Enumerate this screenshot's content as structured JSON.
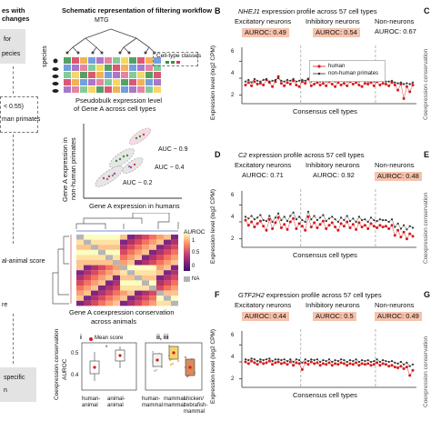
{
  "left_column": {
    "heading_line1": "es with",
    "heading_line2": "changes",
    "box1_line1": "for",
    "box1_line2": "pecies",
    "box2_line1": "< 0.55)",
    "box2_line2": "man primates",
    "box3_line1": "al-animal score",
    "box3_line2": "re",
    "box4_line1": "specific",
    "box4_line2": "n"
  },
  "schematic": {
    "title": "Schematic representation of filtering workflow",
    "mtg_label": "MTG",
    "species_label": "species",
    "legend_label": "Cell-type classes",
    "pseudobulk_line1": "Pseudobulk expression level",
    "pseudobulk_line2": "of Gene A across cell types",
    "ylabel_line1": "Gene A expression in",
    "ylabel_line2": "non-human primates",
    "xlabel": "Gene A expression in humans",
    "auc_labels": [
      "AUC ~ 0.9",
      "AUC ~ 0.4",
      "AUC ~ 0.2"
    ],
    "heatmap_legend_title": "AUROC",
    "heatmap_legend_ticks": [
      "1",
      "0.5",
      "0"
    ],
    "heatmap_na": "NA",
    "heatmap_caption_line1": "Gene A coexpression conservation",
    "heatmap_caption_line2": "across animals",
    "sub_i": "i",
    "sub_ii": "ii, iii",
    "mean_score_label": "Mean score",
    "box_ylabel_line1": "Coexpression conservation",
    "box_ylabel_line2": "AUROC",
    "box_yticks": [
      "0.5",
      "0.4"
    ],
    "box_xlabels_i": [
      "human-\nanimal",
      "animal-\nanimal"
    ],
    "box_xlabels_ii": [
      "human-\nmammal",
      "mammal-\nmammal",
      "chicken/\nzebrafish-\nmammal"
    ]
  },
  "panels": [
    {
      "letter": "B",
      "gene": "NHEJ1",
      "title_rest": " expression profile across 57 cell types",
      "groups": [
        {
          "name": "Excitatory neurons",
          "auroc": "AUROC: 0.49",
          "highlight": true
        },
        {
          "name": "Inhibitory neurons",
          "auroc": "AUROC: 0.54",
          "highlight": true
        },
        {
          "name": "Non-neurons",
          "auroc": "AUROC: 0.67",
          "highlight": false
        }
      ],
      "ylabel": "Expression level (log2 CPM)",
      "xlabel": "Consensus cell types",
      "yticks": [
        "6",
        "4",
        "2"
      ],
      "legend": [
        "human",
        "non-human primates"
      ]
    },
    {
      "letter": "D",
      "gene": "C2",
      "title_rest": " expression profile across 57 cell types",
      "groups": [
        {
          "name": "Excitatory neurons",
          "auroc": "AUROC: 0.71",
          "highlight": false
        },
        {
          "name": "Inhibitory neurons",
          "auroc": "AUROC: 0.92",
          "highlight": false
        },
        {
          "name": "Non-neurons",
          "auroc": "AUROC: 0.48",
          "highlight": true
        }
      ],
      "ylabel": "Expression level (log2 CPM)",
      "xlabel": "Consensus cell types",
      "yticks": [
        "6",
        "4",
        "2"
      ]
    },
    {
      "letter": "F",
      "gene": "GTF2H2",
      "title_rest": " expression profile across 57 cell types",
      "groups": [
        {
          "name": "Excitatory neurons",
          "auroc": "AUROC: 0.44",
          "highlight": true
        },
        {
          "name": "Inhibitory neurons",
          "auroc": "AUROC: 0.5",
          "highlight": true
        },
        {
          "name": "Non-neurons",
          "auroc": "AUROC: 0.49",
          "highlight": true
        }
      ],
      "ylabel": "Expression level (log2 CPM)",
      "xlabel": "Consensus cell types",
      "yticks": [
        "6",
        "4",
        "2"
      ]
    }
  ],
  "right_edge": {
    "letters": [
      "C",
      "E",
      "G"
    ],
    "partial_label": "Coexpression conservation"
  },
  "colors": {
    "human": "#d7191c",
    "nonhuman": "#333333",
    "highlight": "#f7c2ac",
    "divider": "#999999"
  },
  "chart_data": [
    {
      "type": "line",
      "title": "NHEJ1 expression profile across 57 cell types",
      "xlabel": "Consensus cell types",
      "ylabel": "Expression level (log2 CPM)",
      "ylim": [
        1,
        7
      ],
      "series": [
        {
          "name": "human",
          "values": [
            3.2,
            3.5,
            3.1,
            3.6,
            3.3,
            3.4,
            3.2,
            3.8,
            3.5,
            3.0,
            3.6,
            4.2,
            3.4,
            3.1,
            3.5,
            3.3,
            3.7,
            3.2,
            3.0,
            3.6,
            3.4,
            3.9,
            3.1,
            3.3,
            3.5,
            3.2,
            3.4,
            3.1,
            3.6,
            3.3,
            3.0,
            3.5,
            3.2,
            3.4,
            3.1,
            3.6,
            3.3,
            3.5,
            3.2,
            3.0,
            3.4,
            3.3,
            3.5,
            3.1,
            3.6,
            3.2,
            3.4,
            3.3,
            3.1,
            3.5,
            3.2,
            2.6,
            3.3,
            1.6,
            3.0,
            2.4,
            3.2
          ]
        },
        {
          "name": "non-human primates",
          "values": [
            3.6,
            3.8,
            3.5,
            3.9,
            3.7,
            3.6,
            3.8,
            3.9,
            3.6,
            3.7,
            3.8,
            4.0,
            3.7,
            3.6,
            3.8,
            3.7,
            3.9,
            3.6,
            3.7,
            3.8,
            3.7,
            3.9,
            3.6,
            3.7,
            3.8,
            3.6,
            3.7,
            3.6,
            3.8,
            3.7,
            3.6,
            3.8,
            3.7,
            3.7,
            3.6,
            3.8,
            3.7,
            3.8,
            3.6,
            3.7,
            3.7,
            3.6,
            3.8,
            3.6,
            3.8,
            3.7,
            3.7,
            3.6,
            3.6,
            3.7,
            3.5,
            3.4,
            3.5,
            3.3,
            3.4,
            3.3,
            3.5
          ]
        }
      ]
    },
    {
      "type": "line",
      "title": "C2 expression profile across 57 cell types",
      "xlabel": "Consensus cell types",
      "ylabel": "Expression level (log2 CPM)",
      "ylim": [
        1,
        7
      ],
      "series": [
        {
          "name": "human",
          "values": [
            4.2,
            3.6,
            4.0,
            3.4,
            3.8,
            4.1,
            3.5,
            3.0,
            4.3,
            3.2,
            3.9,
            4.5,
            3.3,
            3.7,
            3.1,
            4.0,
            4.4,
            3.2,
            3.8,
            3.5,
            3.0,
            4.6,
            3.4,
            3.9,
            3.3,
            3.7,
            4.1,
            3.2,
            3.6,
            3.9,
            3.4,
            3.0,
            3.8,
            3.5,
            4.0,
            3.3,
            3.7,
            3.1,
            3.9,
            3.4,
            3.6,
            3.2,
            3.8,
            3.5,
            3.3,
            3.6,
            3.4,
            3.5,
            3.2,
            3.6,
            2.4,
            3.0,
            2.2,
            2.8,
            2.0,
            2.6,
            2.3
          ]
        },
        {
          "name": "non-human primates",
          "values": [
            4.6,
            4.4,
            4.7,
            4.3,
            4.5,
            4.8,
            4.2,
            4.1,
            4.7,
            4.0,
            4.5,
            5.0,
            4.2,
            4.6,
            4.1,
            4.7,
            5.1,
            4.3,
            4.6,
            4.2,
            4.0,
            5.2,
            4.3,
            4.7,
            4.2,
            4.5,
            4.8,
            4.1,
            4.4,
            4.6,
            4.3,
            4.0,
            4.5,
            4.2,
            4.7,
            4.1,
            4.4,
            4.0,
            4.6,
            4.2,
            4.3,
            4.0,
            4.5,
            4.2,
            4.1,
            4.3,
            4.2,
            4.2,
            4.0,
            4.3,
            3.4,
            3.8,
            3.2,
            3.6,
            3.1,
            3.5,
            3.3
          ]
        }
      ]
    },
    {
      "type": "line",
      "title": "GTF2H2 expression profile across 57 cell types",
      "xlabel": "Consensus cell types",
      "ylabel": "Expression level (log2 CPM)",
      "ylim": [
        1,
        7
      ],
      "series": [
        {
          "name": "human",
          "values": [
            4.0,
            3.8,
            4.1,
            3.9,
            3.7,
            4.0,
            3.8,
            3.9,
            4.1,
            3.7,
            3.9,
            4.0,
            3.8,
            3.9,
            3.7,
            4.0,
            3.6,
            3.9,
            3.8,
            3.1,
            3.9,
            3.7,
            4.0,
            3.8,
            3.9,
            3.6,
            3.8,
            3.7,
            3.9,
            3.6,
            3.8,
            3.7,
            3.9,
            3.8,
            3.6,
            3.8,
            3.7,
            3.9,
            3.6,
            3.8,
            3.7,
            3.8,
            3.6,
            3.7,
            3.9,
            3.6,
            3.8,
            3.7,
            3.5,
            3.6,
            3.4,
            3.3,
            3.5,
            3.2,
            3.4,
            2.4,
            3.0
          ]
        },
        {
          "name": "non-human primates",
          "values": [
            4.3,
            4.2,
            4.4,
            4.3,
            4.1,
            4.3,
            4.2,
            4.3,
            4.4,
            4.1,
            4.3,
            4.3,
            4.2,
            4.3,
            4.1,
            4.3,
            4.0,
            4.3,
            4.2,
            3.9,
            4.3,
            4.1,
            4.3,
            4.2,
            4.3,
            4.0,
            4.2,
            4.1,
            4.3,
            4.0,
            4.2,
            4.1,
            4.3,
            4.2,
            4.0,
            4.2,
            4.1,
            4.3,
            4.0,
            4.2,
            4.1,
            4.2,
            4.0,
            4.1,
            4.3,
            4.0,
            4.2,
            4.1,
            4.0,
            4.1,
            3.9,
            3.8,
            4.0,
            3.7,
            3.9,
            3.5,
            3.7
          ]
        }
      ]
    }
  ]
}
